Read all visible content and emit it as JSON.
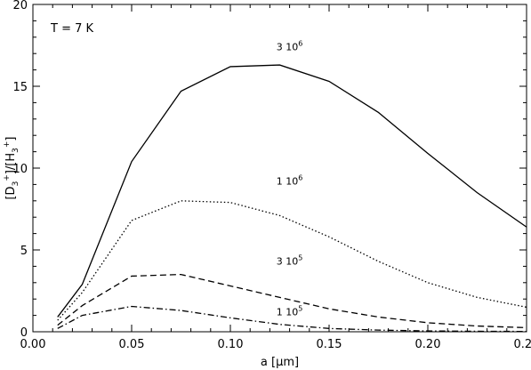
{
  "chart_data": {
    "type": "line",
    "title": "",
    "xlabel": "a [μm]",
    "ylabel": "[D3+]/[H3+]",
    "xlim": [
      0.0,
      0.25
    ],
    "ylim": [
      0,
      20
    ],
    "x_ticks": [
      0.0,
      0.05,
      0.1,
      0.15,
      0.2,
      0.25
    ],
    "x_tick_labels": [
      "0.00",
      "0.05",
      "0.10",
      "0.15",
      "0.20",
      "0.25"
    ],
    "y_ticks": [
      0,
      5,
      10,
      15,
      20
    ],
    "y_tick_labels": [
      "0",
      "5",
      "10",
      "15",
      "20"
    ],
    "grid": false,
    "temperature_label": "T = 7 K",
    "series": [
      {
        "name": "3 10^6",
        "label_prefix": "3 10",
        "label_exp": "6",
        "style": "solid",
        "label_pos": {
          "x": 0.13,
          "y": 17.2
        },
        "x": [
          0.0125,
          0.025,
          0.05,
          0.075,
          0.1,
          0.125,
          0.15,
          0.175,
          0.2,
          0.225,
          0.25
        ],
        "y": [
          0.9,
          2.9,
          10.4,
          14.7,
          16.2,
          16.3,
          15.3,
          13.4,
          10.9,
          8.5,
          6.4
        ]
      },
      {
        "name": "1 10^6",
        "label_prefix": "1 10",
        "label_exp": "6",
        "style": "dotted",
        "label_pos": {
          "x": 0.13,
          "y": 9.0
        },
        "x": [
          0.0125,
          0.025,
          0.05,
          0.075,
          0.1,
          0.125,
          0.15,
          0.175,
          0.2,
          0.225,
          0.25
        ],
        "y": [
          0.7,
          2.4,
          6.8,
          8.0,
          7.9,
          7.1,
          5.8,
          4.3,
          3.0,
          2.1,
          1.5
        ]
      },
      {
        "name": "3 10^5",
        "label_prefix": "3 10",
        "label_exp": "5",
        "style": "dashed",
        "label_pos": {
          "x": 0.13,
          "y": 4.1
        },
        "x": [
          0.0125,
          0.025,
          0.05,
          0.075,
          0.1,
          0.125,
          0.15,
          0.175,
          0.2,
          0.225,
          0.25
        ],
        "y": [
          0.4,
          1.6,
          3.4,
          3.5,
          2.8,
          2.1,
          1.4,
          0.9,
          0.55,
          0.35,
          0.25
        ]
      },
      {
        "name": "1 10^5",
        "label_prefix": "1 10",
        "label_exp": "5",
        "style": "dashdot",
        "label_pos": {
          "x": 0.13,
          "y": 1.0
        },
        "x": [
          0.0125,
          0.025,
          0.05,
          0.075,
          0.1,
          0.125,
          0.15,
          0.175,
          0.2,
          0.225,
          0.25
        ],
        "y": [
          0.2,
          1.0,
          1.55,
          1.3,
          0.85,
          0.45,
          0.2,
          0.1,
          0.05,
          0.03,
          0.02
        ]
      }
    ]
  }
}
